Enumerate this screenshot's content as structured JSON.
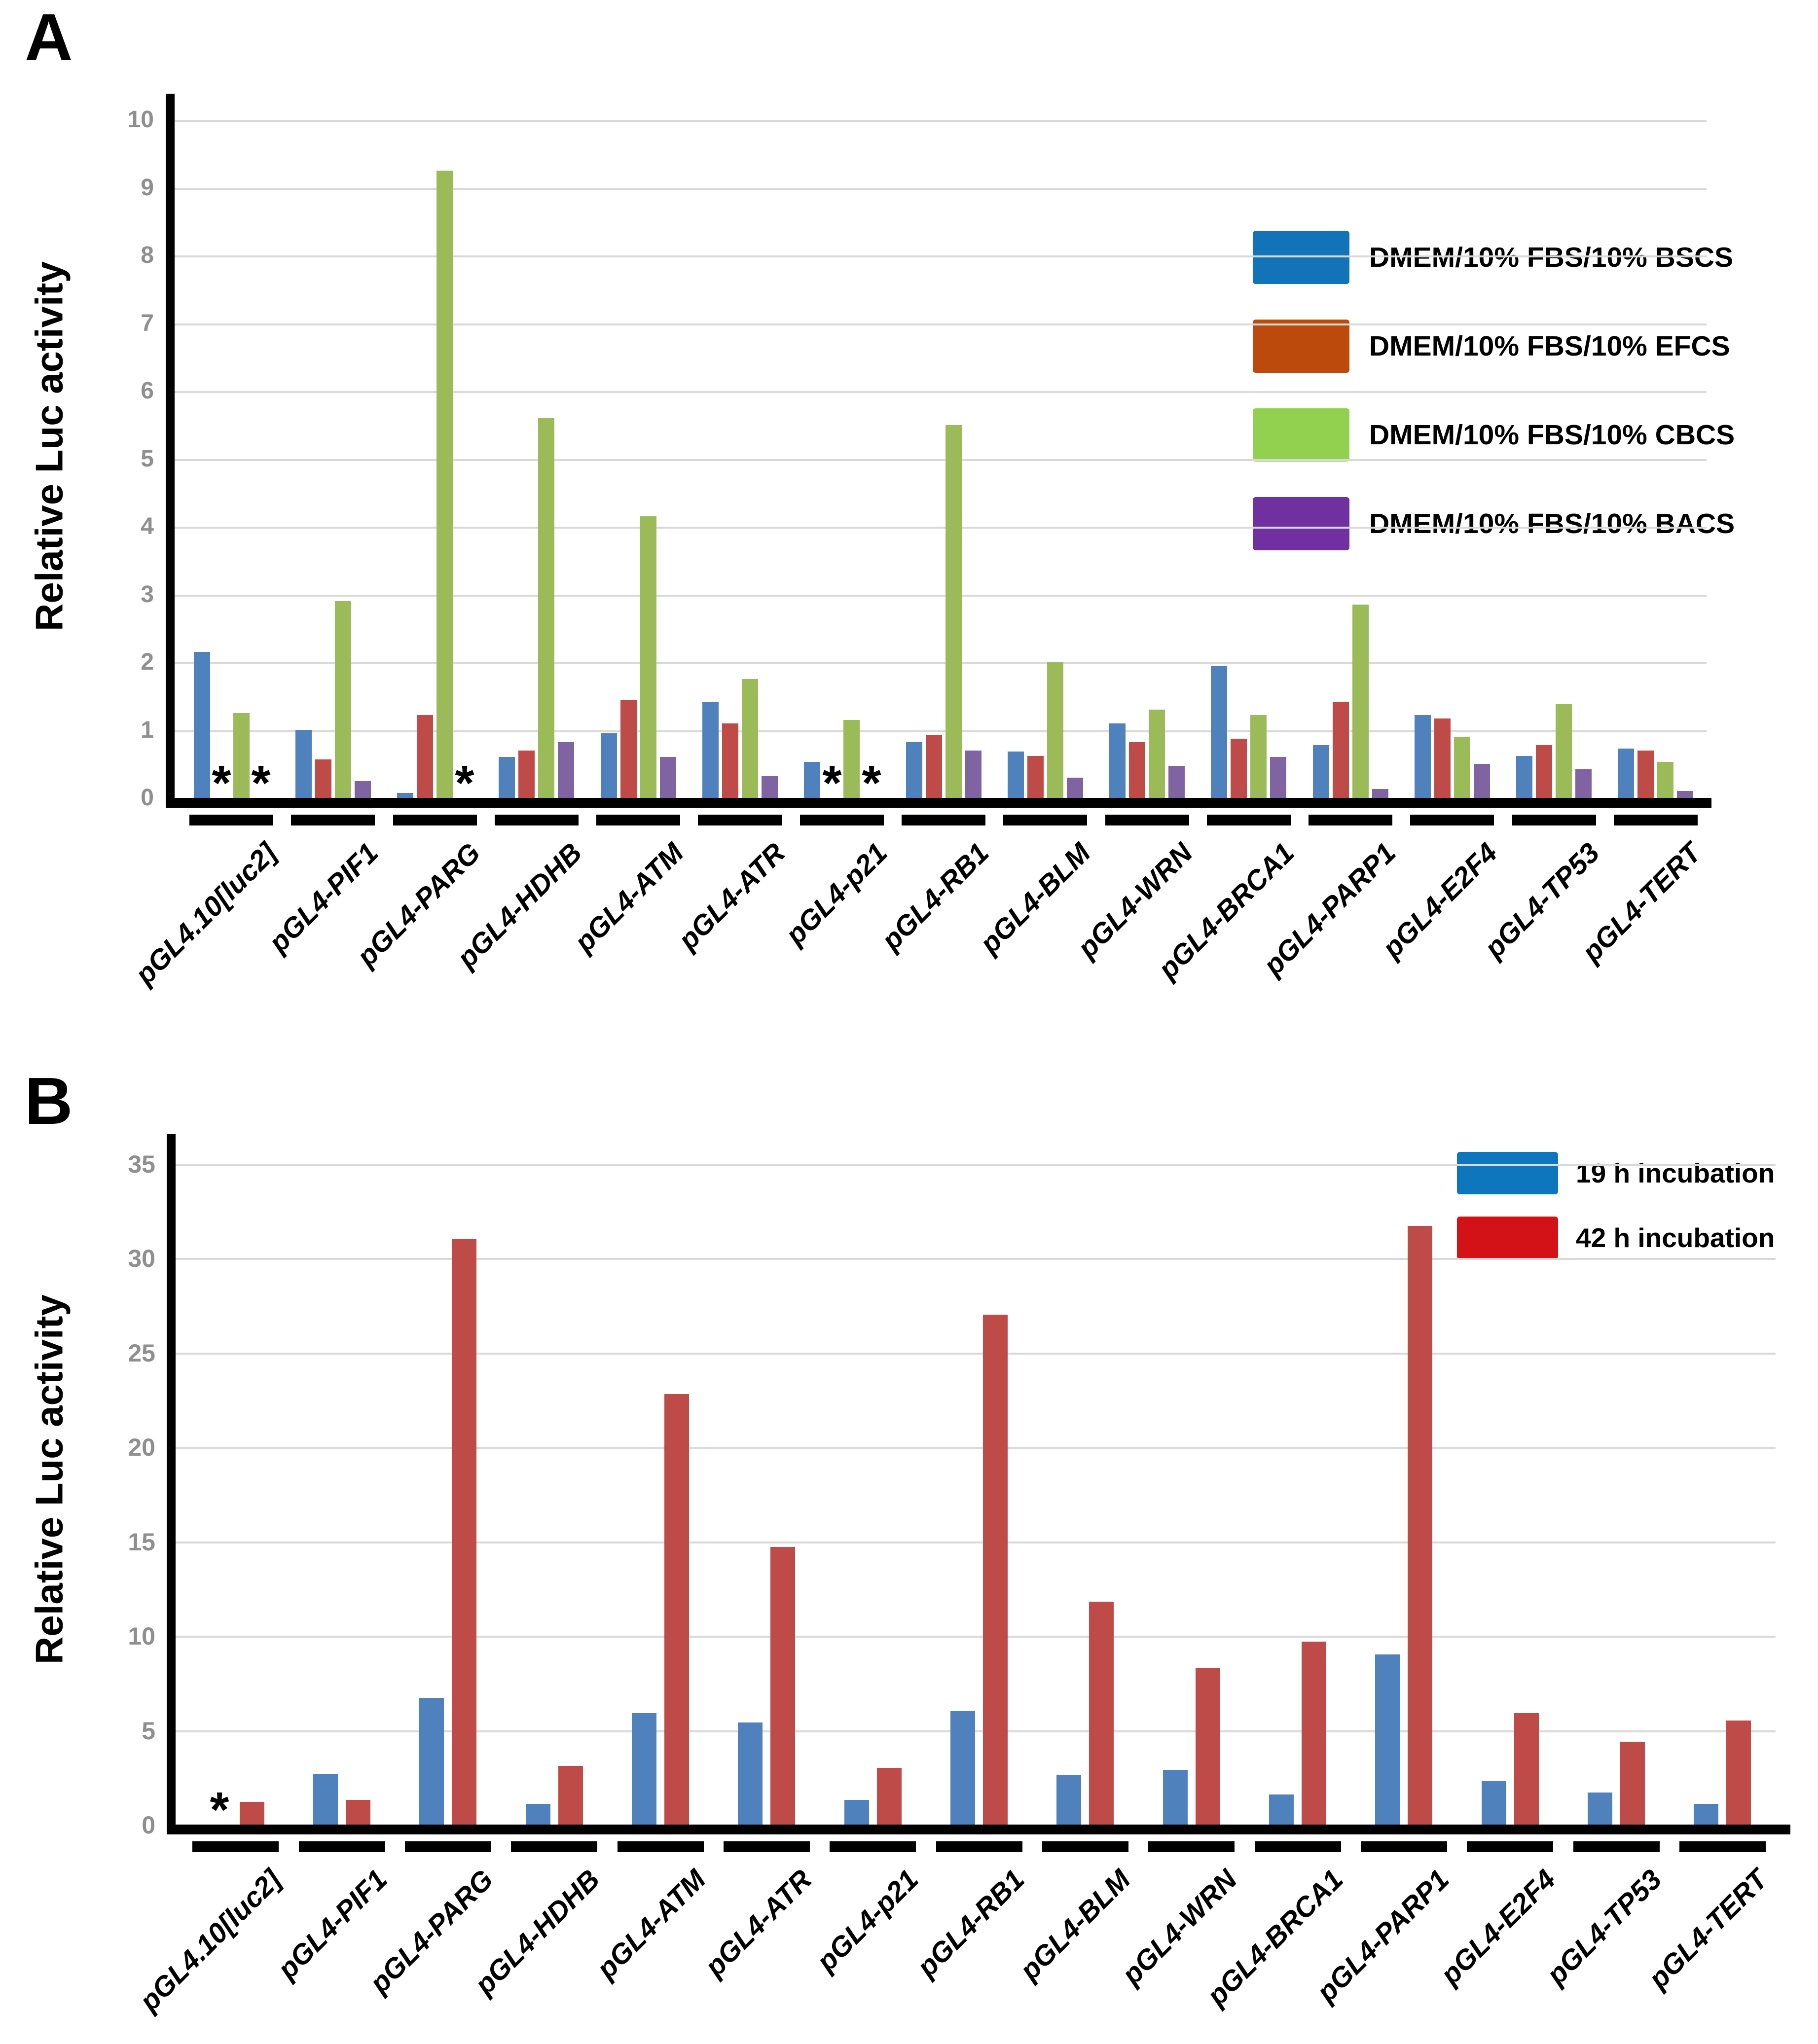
{
  "figure": {
    "panel_a_letter": "A",
    "panel_b_letter": "B"
  },
  "chart_data": [
    {
      "type": "bar",
      "panel_label": "A",
      "title": "",
      "xlabel": "",
      "ylabel": "Relative Luc activity",
      "ylim": [
        0,
        10
      ],
      "ytick_step": 1,
      "grid": "horizontal",
      "legend_position": "upper-right",
      "significance_marker": "*",
      "significance_note": "null value = asterisk (*) plotted at baseline instead of a bar",
      "categories": [
        "pGL4.10[luc2]",
        "pGL4-PIF1",
        "pGL4-PARG",
        "pGL4-HDHB",
        "pGL4-ATM",
        "pGL4-ATR",
        "pGL4-p21",
        "pGL4-RB1",
        "pGL4-BLM",
        "pGL4-WRN",
        "pGL4-BRCA1",
        "pGL4-PARP1",
        "pGL4-E2F4",
        "pGL4-TP53",
        "pGL4-TERT"
      ],
      "series": [
        {
          "name": "DMEM/10% FBS/10% BSCS",
          "bar_color": "#4f81bd",
          "legend_color": "#1273b8",
          "values": [
            2.15,
            1.0,
            0.07,
            0.6,
            0.95,
            1.42,
            0.53,
            0.82,
            0.68,
            1.1,
            1.95,
            0.78,
            1.22,
            0.62,
            0.73
          ]
        },
        {
          "name": "DMEM/10% FBS/10% EFCS",
          "bar_color": "#be4b48",
          "legend_color": "#bc4a0c",
          "values": [
            null,
            0.57,
            1.22,
            0.7,
            1.45,
            1.1,
            null,
            0.92,
            0.62,
            0.82,
            0.87,
            1.42,
            1.17,
            0.78,
            0.7
          ]
        },
        {
          "name": "DMEM/10% FBS/10% CBCS",
          "bar_color": "#9bbb59",
          "legend_color": "#92d050",
          "values": [
            1.25,
            2.9,
            9.25,
            5.6,
            4.15,
            1.75,
            1.15,
            5.5,
            2.0,
            1.3,
            1.22,
            2.85,
            0.9,
            1.38,
            0.53
          ]
        },
        {
          "name": "DMEM/10% FBS/10% BACS",
          "bar_color": "#8064a2",
          "legend_color": "#7030a0",
          "values": [
            null,
            0.25,
            null,
            0.82,
            0.6,
            0.32,
            null,
            0.7,
            0.3,
            0.47,
            0.6,
            0.13,
            0.5,
            0.42,
            0.1
          ]
        }
      ]
    },
    {
      "type": "bar",
      "panel_label": "B",
      "title": "",
      "xlabel": "",
      "ylabel": "Relative Luc activity",
      "ylim": [
        0,
        35
      ],
      "ytick_step": 5,
      "grid": "horizontal",
      "legend_position": "upper-right",
      "significance_marker": "*",
      "significance_note": "null value = asterisk (*) plotted at baseline instead of a bar",
      "categories": [
        "pGL4.10[luc2]",
        "pGL4-PIF1",
        "pGL4-PARG",
        "pGL4-HDHB",
        "pGL4-ATM",
        "pGL4-ATR",
        "pGL4-p21",
        "pGL4-RB1",
        "pGL4-BLM",
        "pGL4-WRN",
        "pGL4-BRCA1",
        "pGL4-PARP1",
        "pGL4-E2F4",
        "pGL4-TP53",
        "pGL4-TERT"
      ],
      "series": [
        {
          "name": "19 h incubation",
          "bar_color": "#4f81bd",
          "legend_color": "#0d76bd",
          "values": [
            null,
            2.7,
            6.7,
            1.1,
            5.9,
            5.4,
            1.3,
            6.0,
            2.6,
            2.9,
            1.6,
            9.0,
            2.3,
            1.7,
            1.1
          ]
        },
        {
          "name": "42 h incubation",
          "bar_color": "#be4b48",
          "legend_color": "#d21216",
          "values": [
            1.2,
            1.3,
            31.0,
            3.1,
            22.8,
            14.7,
            3.0,
            27.0,
            11.8,
            8.3,
            9.7,
            31.7,
            5.9,
            4.4,
            5.5
          ]
        }
      ]
    }
  ]
}
